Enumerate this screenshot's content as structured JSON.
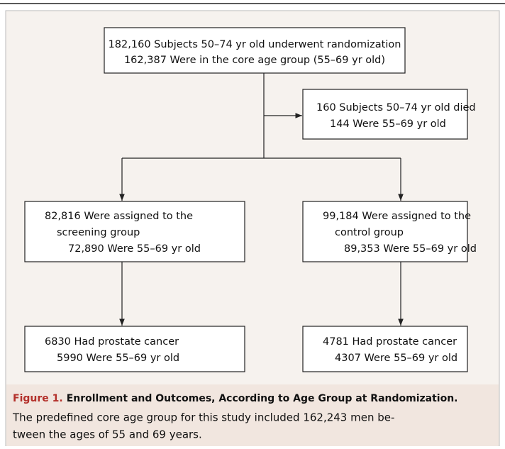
{
  "nodes": [
    {
      "lines": [
        "182,160 Subjects 50–74 yr old underwent randomization",
        "162,387 Were in the core age group (55–69 yr old)"
      ]
    },
    {
      "lines": [
        "160 Subjects 50–74 yr old died",
        "144 Were 55–69 yr old"
      ]
    },
    {
      "lines": [
        "82,816 Were assigned to the",
        "screening group",
        "72,890 Were 55–69 yr old"
      ]
    },
    {
      "lines": [
        "99,184 Were assigned to the",
        "control group",
        "89,353 Were 55–69 yr old"
      ]
    },
    {
      "lines": [
        "6830 Had prostate cancer",
        "5990 Were 55–69 yr old"
      ]
    },
    {
      "lines": [
        "4781 Had prostate cancer",
        "4307 Were 55–69 yr old"
      ]
    }
  ],
  "caption": {
    "label": "Figure 1.",
    "title": "Enrollment and Outcomes, According to Age Group at Randomization.",
    "text": [
      "The predefined core age group for this study included 162,243 men be-",
      "tween the ages of 55 and 69 years."
    ]
  }
}
